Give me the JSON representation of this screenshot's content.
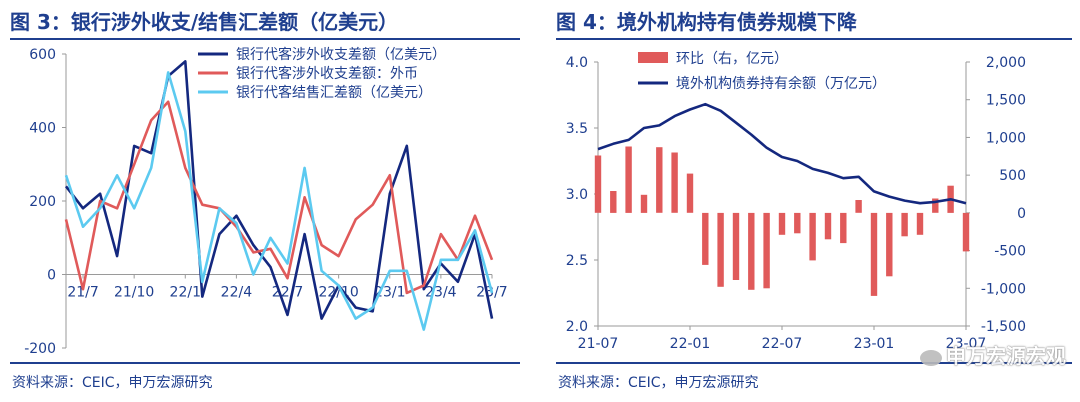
{
  "left": {
    "title": "图 3：银行涉外收支/结售汇差额（亿美元）",
    "source": "资料来源：CEIC，申万宏源研究",
    "chart_data": {
      "type": "line",
      "title": "图 3：银行涉外收支/结售汇差额（亿美元）",
      "xlabel": "",
      "ylabel": "",
      "ylim": [
        -200,
        600
      ],
      "yticks": [
        -200,
        0,
        200,
        400,
        600
      ],
      "x": [
        "21/6",
        "21/7",
        "21/8",
        "21/9",
        "21/10",
        "21/11",
        "21/12",
        "22/1",
        "22/2",
        "22/3",
        "22/4",
        "22/5",
        "22/6",
        "22/7",
        "22/8",
        "22/9",
        "22/10",
        "22/11",
        "22/12",
        "23/1",
        "23/2",
        "23/3",
        "23/4",
        "23/5",
        "23/6",
        "23/7"
      ],
      "xtick_labels": [
        "21/7",
        "21/10",
        "22/1",
        "22/4",
        "22/7",
        "22/10",
        "23/1",
        "23/4",
        "23/7"
      ],
      "grid": false,
      "legend_position": "top-right",
      "series": [
        {
          "name": "银行代客涉外收支差额（亿美元）",
          "color": "#14287f",
          "values": [
            240,
            180,
            220,
            50,
            350,
            330,
            540,
            580,
            -60,
            110,
            160,
            80,
            20,
            -110,
            110,
            -120,
            -30,
            -90,
            -100,
            220,
            350,
            -40,
            30,
            -20,
            110,
            -120
          ]
        },
        {
          "name": "银行代客涉外收支差额：外币",
          "color": "#e05a5a",
          "values": [
            150,
            -40,
            200,
            180,
            300,
            420,
            470,
            290,
            190,
            180,
            130,
            60,
            70,
            -10,
            210,
            80,
            50,
            150,
            190,
            270,
            -50,
            -30,
            110,
            40,
            160,
            40
          ]
        },
        {
          "name": "银行代客结售汇差额（亿美元）",
          "color": "#5ccaf0",
          "values": [
            270,
            130,
            180,
            270,
            180,
            290,
            550,
            390,
            -20,
            180,
            140,
            0,
            100,
            30,
            290,
            10,
            -30,
            -120,
            -90,
            10,
            10,
            -150,
            40,
            40,
            120,
            -50
          ]
        }
      ]
    }
  },
  "right": {
    "title": "图 4：境外机构持有债券规模下降",
    "source": "资料来源：CEIC，申万宏源研究",
    "chart_data": {
      "type": "bar",
      "title": "图 4：境外机构持有债券规模下降",
      "xlabel": "",
      "ylabel": "",
      "x": [
        "21-07",
        "21-08",
        "21-09",
        "21-10",
        "21-11",
        "21-12",
        "22-01",
        "22-02",
        "22-03",
        "22-04",
        "22-05",
        "22-06",
        "22-07",
        "22-08",
        "22-09",
        "22-10",
        "22-11",
        "22-12",
        "23-01",
        "23-02",
        "23-03",
        "23-04",
        "23-05",
        "23-06",
        "23-07"
      ],
      "xtick_labels": [
        "21-07",
        "22-01",
        "22-07",
        "23-01",
        "23-07"
      ],
      "y_left": {
        "label": "",
        "ylim": [
          2.0,
          4.0
        ],
        "ticks": [
          "2.0",
          "2.5",
          "3.0",
          "3.5",
          "4.0"
        ]
      },
      "y_right": {
        "label": "",
        "ylim": [
          -1500,
          2000
        ],
        "ticks": [
          "-1,500",
          "-1,000",
          "-500",
          "0",
          "500",
          "1,000",
          "1,500",
          "2,000"
        ]
      },
      "legend_position": "top-left",
      "series": [
        {
          "name": "环比（右，亿元）",
          "type": "bar",
          "axis": "right",
          "color": "#e05a5a",
          "values": [
            760,
            290,
            880,
            240,
            870,
            800,
            520,
            -690,
            -980,
            -890,
            -1020,
            -1000,
            -290,
            -270,
            -630,
            -350,
            -400,
            170,
            -1100,
            -840,
            -310,
            -290,
            190,
            360,
            -510
          ]
        },
        {
          "name": "境外机构债券持有余额（万亿元）",
          "type": "line",
          "axis": "left",
          "color": "#14287f",
          "values": [
            3.34,
            3.38,
            3.41,
            3.5,
            3.52,
            3.59,
            3.64,
            3.68,
            3.63,
            3.54,
            3.45,
            3.35,
            3.28,
            3.25,
            3.19,
            3.16,
            3.12,
            3.13,
            3.02,
            2.98,
            2.95,
            2.93,
            2.94,
            2.96,
            2.93
          ]
        }
      ]
    }
  },
  "watermark": {
    "text": "申万宏源宏观"
  }
}
